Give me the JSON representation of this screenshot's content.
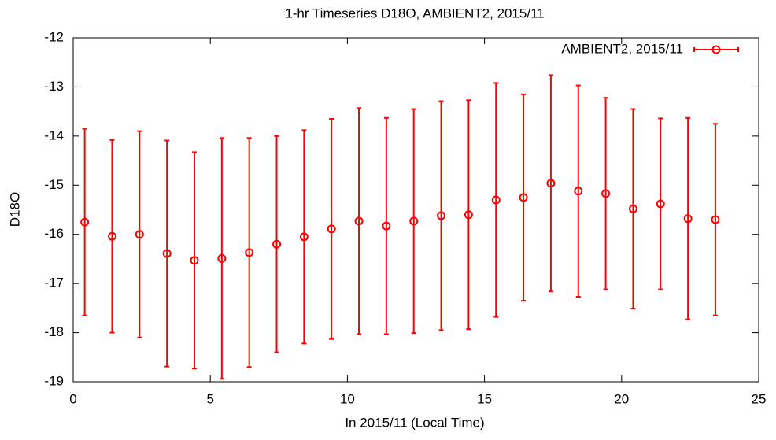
{
  "chart_data": {
    "type": "errorbar",
    "title": "1-hr Timeseries D18O, AMBIENT2, 2015/11",
    "x_label": "In 2015/11 (Local Time)",
    "y_label": "D18O",
    "xlim": [
      0,
      25
    ],
    "xticks": [
      0,
      5,
      10,
      15,
      20,
      25
    ],
    "ylim": [
      -19,
      -12
    ],
    "yticks": [
      -19,
      -18,
      -17,
      -16,
      -15,
      -14,
      -13,
      -12
    ],
    "legend": "top-right",
    "series": [
      {
        "name": "AMBIENT2, 2015/11",
        "color": "#ff0000",
        "x": [
          0.42,
          1.42,
          2.42,
          3.42,
          4.42,
          5.42,
          6.42,
          7.42,
          8.42,
          9.42,
          10.42,
          11.42,
          12.42,
          13.42,
          14.42,
          15.42,
          16.42,
          17.42,
          18.42,
          19.42,
          20.42,
          21.42,
          22.42,
          23.42
        ],
        "values": [
          -15.75,
          -16.04,
          -16.0,
          -16.39,
          -16.53,
          -16.49,
          -16.37,
          -16.2,
          -16.05,
          -15.89,
          -15.73,
          -15.83,
          -15.73,
          -15.62,
          -15.6,
          -15.3,
          -15.25,
          -14.96,
          -15.12,
          -15.17,
          -15.48,
          -15.38,
          -15.68,
          -15.7
        ],
        "errors": [
          1.9,
          1.96,
          2.1,
          2.3,
          2.2,
          2.45,
          2.33,
          2.2,
          2.17,
          2.24,
          2.3,
          2.2,
          2.28,
          2.33,
          2.33,
          2.38,
          2.1,
          2.2,
          2.15,
          1.95,
          2.03,
          1.74,
          2.05,
          1.95
        ]
      }
    ]
  }
}
